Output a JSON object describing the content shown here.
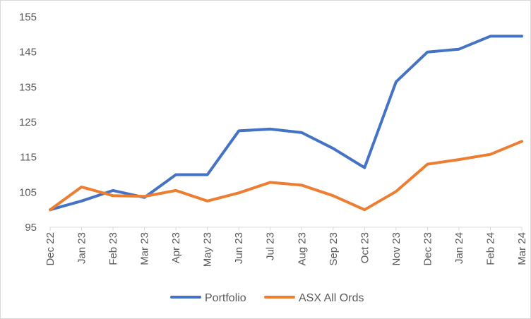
{
  "chart_data": {
    "type": "line",
    "categories": [
      "Dec 22",
      "Jan 23",
      "Feb 23",
      "Mar 23",
      "Apr 23",
      "May 23",
      "Jun 23",
      "Jul 23",
      "Aug 23",
      "Sep 23",
      "Oct 23",
      "Nov 23",
      "Dec 23",
      "Jan 24",
      "Feb 24",
      "Mar 24"
    ],
    "series": [
      {
        "name": "Portfolio",
        "color": "#4472C4",
        "values": [
          100,
          102.5,
          105.5,
          103.5,
          110,
          110,
          122.5,
          123,
          122,
          117.5,
          112,
          136.5,
          145,
          145.8,
          149.5,
          149.5
        ]
      },
      {
        "name": "ASX All Ords",
        "color": "#ED7D31",
        "values": [
          100,
          106.5,
          104,
          103.8,
          105.5,
          102.5,
          104.8,
          107.8,
          107,
          104,
          100,
          105.2,
          113,
          114.3,
          115.8,
          119.5
        ]
      }
    ],
    "y_ticks": [
      "95",
      "105",
      "115",
      "125",
      "135",
      "145",
      "155"
    ],
    "ylim": [
      95,
      155
    ],
    "title": "",
    "xlabel": "",
    "ylabel": "",
    "grid": false,
    "legend_position": "bottom"
  }
}
